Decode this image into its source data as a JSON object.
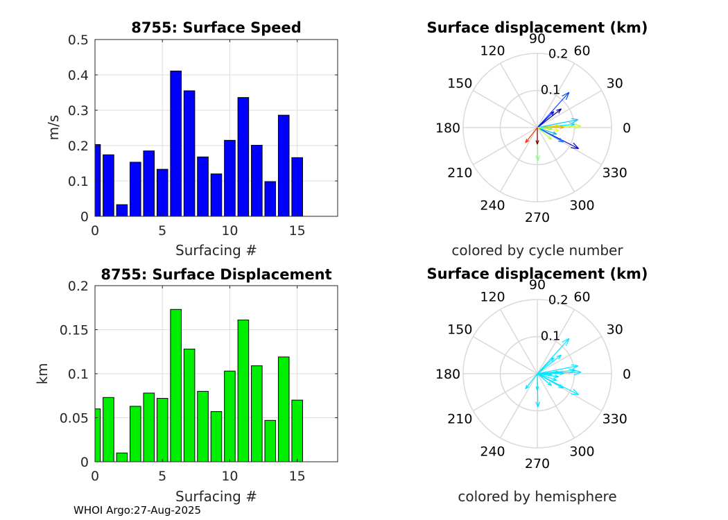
{
  "footer": "WHOI Argo:27-Aug-2025",
  "colors": {
    "bar_speed": "#0000ff",
    "bar_disp": "#00ee00",
    "cyan": "#00e5ff",
    "grid": "#d9d9d9"
  },
  "chart_data": [
    {
      "id": "speed",
      "type": "bar",
      "title": "8755: Surface Speed",
      "xlabel": "Surfacing #",
      "ylabel": "m/s",
      "x": [
        0,
        1,
        2,
        3,
        4,
        5,
        6,
        7,
        8,
        9,
        10,
        11,
        12,
        13,
        14,
        15
      ],
      "values": [
        0.203,
        0.174,
        0.033,
        0.153,
        0.185,
        0.133,
        0.411,
        0.355,
        0.168,
        0.12,
        0.215,
        0.336,
        0.201,
        0.098,
        0.286,
        0.166
      ],
      "xlim": [
        0,
        18
      ],
      "ylim": [
        0,
        0.5
      ],
      "xticks": [
        "0",
        "5",
        "10",
        "15"
      ],
      "yticks": [
        "0",
        "0.1",
        "0.2",
        "0.3",
        "0.4",
        "0.5"
      ],
      "grid": true
    },
    {
      "id": "disp",
      "type": "bar",
      "title": "8755: Surface Displacement",
      "xlabel": "Surfacing #",
      "ylabel": "km",
      "x": [
        0,
        1,
        2,
        3,
        4,
        5,
        6,
        7,
        8,
        9,
        10,
        11,
        12,
        13,
        14,
        15
      ],
      "values": [
        0.06,
        0.073,
        0.01,
        0.063,
        0.078,
        0.072,
        0.173,
        0.128,
        0.08,
        0.057,
        0.103,
        0.161,
        0.109,
        0.047,
        0.119,
        0.07
      ],
      "xlim": [
        0,
        18
      ],
      "ylim": [
        0,
        0.2
      ],
      "xticks": [
        "0",
        "5",
        "10",
        "15"
      ],
      "yticks": [
        "0",
        "0.05",
        "0.1",
        "0.15",
        "0.2"
      ],
      "grid": true
    },
    {
      "id": "compass1",
      "type": "polar-compass",
      "title": "Surface displacement (km)",
      "subtitle": "colored by cycle number",
      "rmax": 0.2,
      "rlabels": [
        "0.1",
        "0.2"
      ],
      "angle_labels": [
        "0",
        "30",
        "60",
        "90",
        "120",
        "150",
        "180",
        "210",
        "240",
        "270",
        "300",
        "330"
      ],
      "arrows": [
        {
          "angle": 48,
          "r": 0.128,
          "color": "#0047ff"
        },
        {
          "angle": 38,
          "r": 0.082,
          "color": "#00008f"
        },
        {
          "angle": 44,
          "r": 0.062,
          "color": "#0000ff"
        },
        {
          "angle": 11,
          "r": 0.112,
          "color": "#00c8ff"
        },
        {
          "angle": 5,
          "r": 0.102,
          "color": "#00e5ff"
        },
        {
          "angle": 2,
          "r": 0.118,
          "color": "#c8ff37"
        },
        {
          "angle": 4,
          "r": 0.06,
          "color": "#ffd200"
        },
        {
          "angle": 1,
          "r": 0.072,
          "color": "#ffa000"
        },
        {
          "angle": 333,
          "r": 0.125,
          "color": "#0000cc"
        },
        {
          "angle": 331,
          "r": 0.08,
          "color": "#1e78ff"
        },
        {
          "angle": 341,
          "r": 0.055,
          "color": "#00b4ff"
        },
        {
          "angle": 352,
          "r": 0.058,
          "color": "#ffff00"
        },
        {
          "angle": 355,
          "r": 0.04,
          "color": "#7fff7f"
        },
        {
          "angle": 320,
          "r": 0.05,
          "color": "#b4ff50"
        },
        {
          "angle": 271,
          "r": 0.09,
          "color": "#80ff80"
        },
        {
          "angle": 270,
          "r": 0.045,
          "color": "#800000"
        },
        {
          "angle": 232,
          "r": 0.052,
          "color": "#ff3000"
        }
      ]
    },
    {
      "id": "compass2",
      "type": "polar-compass",
      "title": "Surface displacement (km)",
      "subtitle": "colored by hemisphere",
      "rmax": 0.2,
      "rlabels": [
        "0.1",
        "0.2"
      ],
      "angle_labels": [
        "0",
        "30",
        "60",
        "90",
        "120",
        "150",
        "180",
        "210",
        "240",
        "270",
        "300",
        "330"
      ],
      "arrows": [
        {
          "angle": 48,
          "r": 0.128,
          "color": "#00e5ff"
        },
        {
          "angle": 38,
          "r": 0.082,
          "color": "#00e5ff"
        },
        {
          "angle": 44,
          "r": 0.062,
          "color": "#00e5ff"
        },
        {
          "angle": 11,
          "r": 0.112,
          "color": "#00e5ff"
        },
        {
          "angle": 5,
          "r": 0.102,
          "color": "#00e5ff"
        },
        {
          "angle": 2,
          "r": 0.118,
          "color": "#00e5ff"
        },
        {
          "angle": 4,
          "r": 0.06,
          "color": "#00e5ff"
        },
        {
          "angle": 1,
          "r": 0.072,
          "color": "#00e5ff"
        },
        {
          "angle": 333,
          "r": 0.125,
          "color": "#00e5ff"
        },
        {
          "angle": 331,
          "r": 0.08,
          "color": "#00e5ff"
        },
        {
          "angle": 341,
          "r": 0.055,
          "color": "#00e5ff"
        },
        {
          "angle": 352,
          "r": 0.058,
          "color": "#00e5ff"
        },
        {
          "angle": 355,
          "r": 0.04,
          "color": "#00e5ff"
        },
        {
          "angle": 320,
          "r": 0.05,
          "color": "#00e5ff"
        },
        {
          "angle": 271,
          "r": 0.09,
          "color": "#00e5ff"
        },
        {
          "angle": 270,
          "r": 0.045,
          "color": "#00e5ff"
        },
        {
          "angle": 232,
          "r": 0.052,
          "color": "#00e5ff"
        }
      ]
    }
  ]
}
